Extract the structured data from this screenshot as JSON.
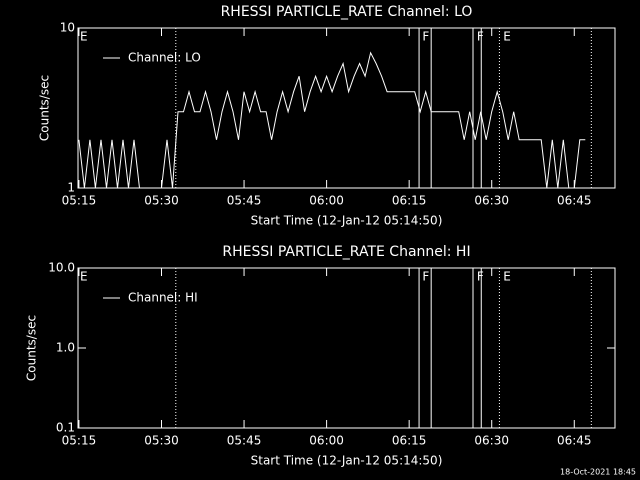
{
  "chart_data": [
    {
      "type": "line",
      "title": "RHESSI PARTICLE_RATE Channel: LO",
      "xlabel": "Start Time (12-Jan-12 05:14:50)",
      "ylabel": "Counts/sec",
      "x": [
        315,
        316,
        317,
        318,
        319,
        320,
        321,
        322,
        323,
        324,
        325,
        326,
        327,
        328,
        329,
        330,
        331,
        332,
        333,
        334,
        335,
        336,
        337,
        338,
        339,
        340,
        341,
        342,
        343,
        344,
        345,
        346,
        347,
        348,
        349,
        350,
        351,
        352,
        353,
        354,
        355,
        356,
        357,
        358,
        359,
        360,
        361,
        362,
        363,
        364,
        365,
        366,
        367,
        368,
        369,
        370,
        371,
        372,
        373,
        374,
        375,
        376,
        377,
        378,
        379,
        380,
        381,
        382,
        383,
        384,
        385,
        386,
        387,
        388,
        389,
        390,
        391,
        392,
        393,
        394,
        395,
        396,
        397,
        398,
        399,
        400,
        401,
        402,
        403,
        404,
        405,
        406,
        407
      ],
      "series": [
        {
          "name": "Channel: LO",
          "color": "#ffffff",
          "values": [
            2,
            1,
            2,
            1,
            2,
            1,
            2,
            1,
            2,
            1,
            2,
            1,
            1,
            1,
            1,
            1,
            2,
            1,
            3,
            3,
            4,
            3,
            3,
            4,
            3,
            2,
            3,
            4,
            3,
            2,
            4,
            3,
            4,
            3,
            3,
            2,
            3,
            4,
            3,
            4,
            5,
            3,
            4,
            5,
            4,
            5,
            4,
            5,
            6,
            4,
            5,
            6,
            5,
            7,
            6,
            5,
            4,
            4,
            4,
            4,
            4,
            4,
            3,
            4,
            3,
            3,
            3,
            3,
            3,
            3,
            2,
            3,
            2,
            3,
            2,
            3,
            4,
            3,
            2,
            3,
            2,
            2,
            2,
            2,
            2,
            1,
            2,
            1,
            2,
            1,
            1,
            2,
            2
          ]
        }
      ],
      "xlim": [
        314.83,
        412.4
      ],
      "xticks": [
        {
          "value": 315,
          "label": "05:15"
        },
        {
          "value": 330,
          "label": "05:30"
        },
        {
          "value": 345,
          "label": "05:45"
        },
        {
          "value": 360,
          "label": "06:00"
        },
        {
          "value": 375,
          "label": "06:15"
        },
        {
          "value": 390,
          "label": "06:30"
        },
        {
          "value": 405,
          "label": "06:45"
        }
      ],
      "ylim": [
        1,
        10
      ],
      "yticks": [
        1,
        10
      ],
      "log_y": true,
      "flag_lines": [
        332.6,
        391.4,
        408.1
      ],
      "flag_bands": [
        [
          376.8,
          379
        ],
        [
          386.6,
          388.1
        ]
      ],
      "flag_labels": [
        {
          "text": "E",
          "x": 315.2
        },
        {
          "text": "F",
          "x": 377.4
        },
        {
          "text": "F",
          "x": 387.3
        },
        {
          "text": "E",
          "x": 392.1
        }
      ]
    },
    {
      "type": "line",
      "title": "RHESSI PARTICLE_RATE Channel: HI",
      "xlabel": "Start Time (12-Jan-12 05:14:50)",
      "ylabel": "Counts/sec",
      "x": [],
      "series": [
        {
          "name": "Channel: HI",
          "color": "#ffffff",
          "values": []
        }
      ],
      "xlim": [
        314.83,
        412.4
      ],
      "xticks": [
        {
          "value": 315,
          "label": "05:15"
        },
        {
          "value": 330,
          "label": "05:30"
        },
        {
          "value": 345,
          "label": "05:45"
        },
        {
          "value": 360,
          "label": "06:00"
        },
        {
          "value": 375,
          "label": "06:15"
        },
        {
          "value": 390,
          "label": "06:30"
        },
        {
          "value": 405,
          "label": "06:45"
        }
      ],
      "ylim": [
        0.1,
        10
      ],
      "yticks": [
        0.1,
        {
          "value": 1,
          "label": "1.0"
        },
        {
          "value": 10,
          "label": "10.0"
        }
      ],
      "log_y": true,
      "flag_lines": [
        332.6,
        391.4,
        408.1
      ],
      "flag_bands": [
        [
          376.8,
          379
        ],
        [
          386.6,
          388.1
        ]
      ],
      "flag_labels": [
        {
          "text": "E",
          "x": 315.2
        },
        {
          "text": "F",
          "x": 377.4
        },
        {
          "text": "F",
          "x": 387.3
        },
        {
          "text": "E",
          "x": 392.1
        }
      ]
    }
  ],
  "footer": {
    "timestamp": "18-Oct-2021 18:45"
  }
}
